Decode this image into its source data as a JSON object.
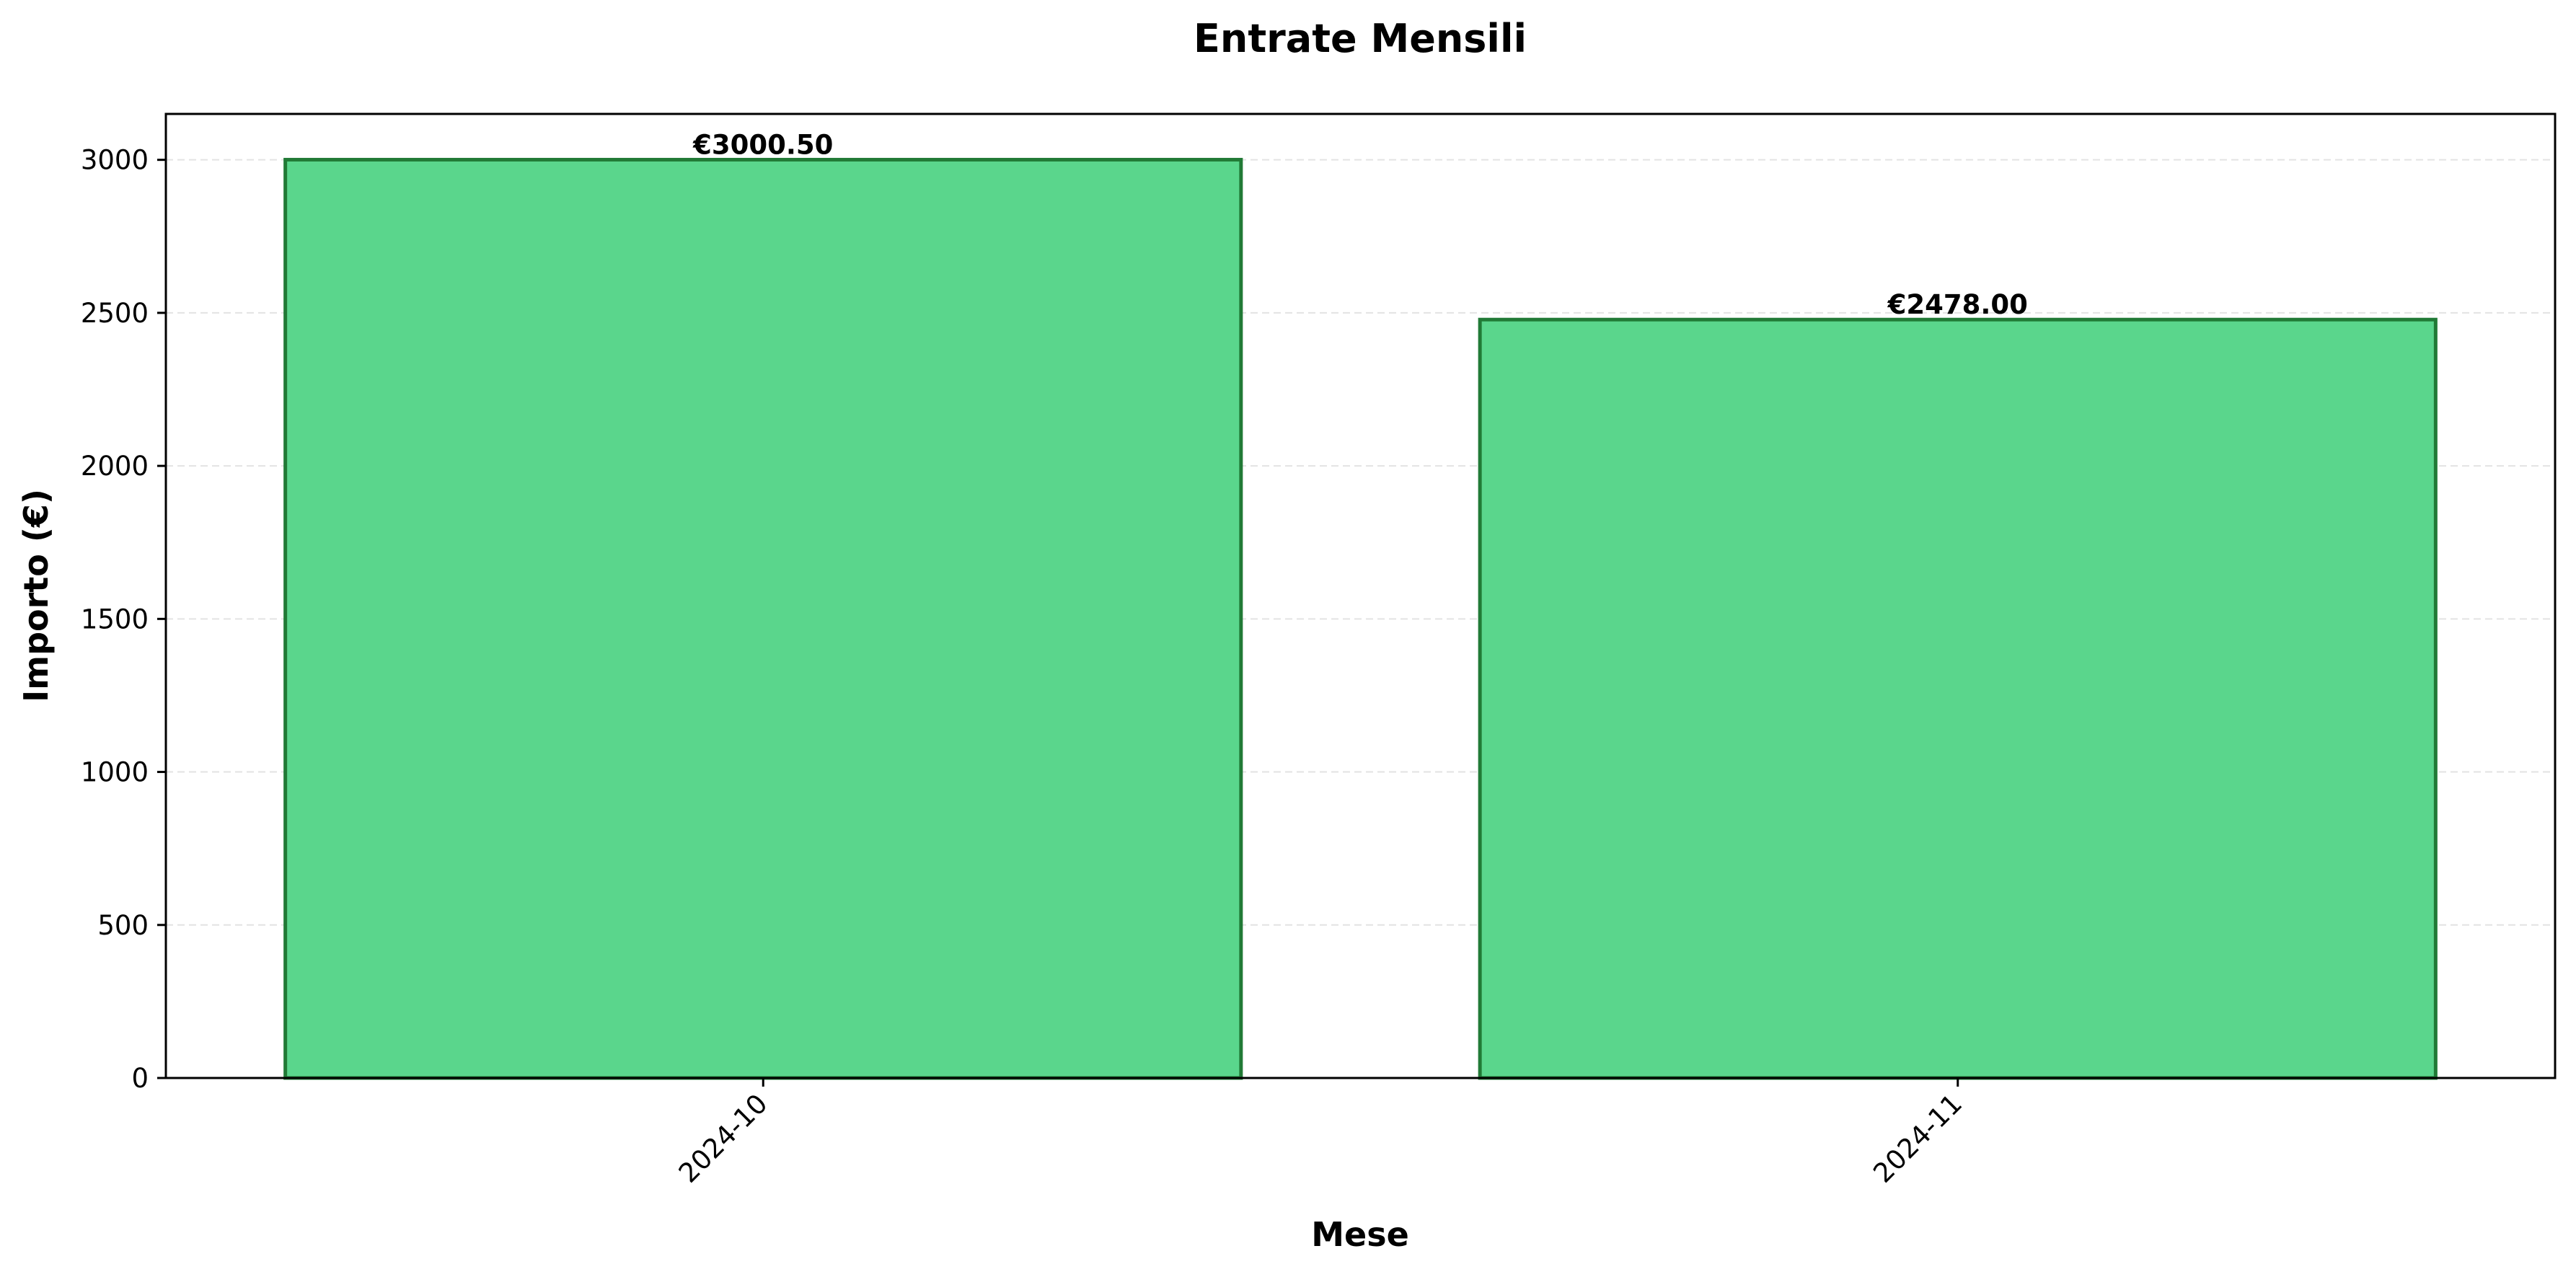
{
  "chart_data": {
    "type": "bar",
    "title": "Entrate Mensili",
    "xlabel": "Mese",
    "ylabel": "Importo (€)",
    "categories": [
      "2024-10",
      "2024-11"
    ],
    "values": [
      3000.5,
      2478.0
    ],
    "value_labels": [
      "€3000.50",
      "€2478.00"
    ],
    "ylim": [
      0,
      3150
    ],
    "yticks": [
      0,
      500,
      1000,
      1500,
      2000,
      2500,
      3000
    ],
    "ytick_labels": [
      "0",
      "500",
      "1000",
      "1500",
      "2000",
      "2500",
      "3000"
    ],
    "grid": "y-dashed",
    "legend": "none",
    "colors": {
      "bar_fill": "#5ad68c",
      "bar_edge": "#217a36",
      "grid": "#e3e3e3",
      "axis": "#000000"
    }
  }
}
